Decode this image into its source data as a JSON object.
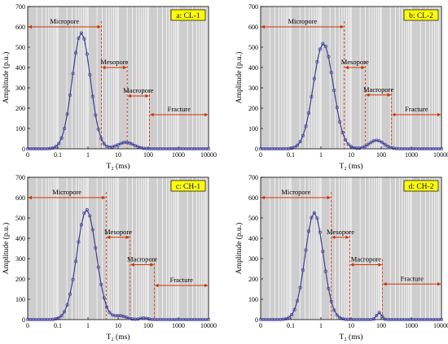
{
  "colors": {
    "plot_bg": "#cdcdcd",
    "grid": "#ffffff",
    "curve": "#3f3f9a",
    "region_marker": "#cc3300",
    "tag_bg": "#ffff00"
  },
  "chart_data": [
    {
      "type": "line",
      "panel": "a: CL-1",
      "xlabel": "T₂ (ms)",
      "ylabel": "Amplitude (p.u.)",
      "xscale": "log",
      "xlim": [
        0.01,
        10000
      ],
      "ylim": [
        0,
        700
      ],
      "xticks": [
        "0",
        "0.1",
        "1",
        "10",
        "100",
        "1000",
        "10000"
      ],
      "yticks": [
        "0",
        "100",
        "200",
        "300",
        "400",
        "500",
        "600",
        "700"
      ],
      "peaks": [
        {
          "center_ms": 0.6,
          "width_decades": 0.3,
          "amplitude": 570
        },
        {
          "center_ms": 18,
          "width_decades": 0.26,
          "amplitude": 32
        }
      ],
      "regions": [
        {
          "label": "Micropore",
          "from_ms": 0.01,
          "to_ms": 2.8,
          "y": 600
        },
        {
          "label": "Mesopore",
          "from_ms": 2.8,
          "to_ms": 20,
          "y": 400
        },
        {
          "label": "Macropore",
          "from_ms": 20,
          "to_ms": 110,
          "y": 260
        },
        {
          "label": "Fracture",
          "from_ms": 110,
          "to_ms": 10000,
          "y": 168
        }
      ]
    },
    {
      "type": "line",
      "panel": "b: CL-2",
      "xlabel": "T₂ (ms)",
      "ylabel": "Amplitude (p.u.)",
      "xscale": "log",
      "xlim": [
        0.01,
        10000
      ],
      "ylim": [
        0,
        700
      ],
      "xticks": [
        "0",
        "0.1",
        "1",
        "10",
        "100",
        "1000",
        "10000"
      ],
      "yticks": [
        "0",
        "100",
        "200",
        "300",
        "400",
        "500",
        "600",
        "700"
      ],
      "peaks": [
        {
          "center_ms": 1.2,
          "width_decades": 0.33,
          "amplitude": 518
        },
        {
          "center_ms": 70,
          "width_decades": 0.24,
          "amplitude": 42
        }
      ],
      "regions": [
        {
          "label": "Micropore",
          "from_ms": 0.01,
          "to_ms": 6,
          "y": 600
        },
        {
          "label": "Mesopore",
          "from_ms": 6,
          "to_ms": 30,
          "y": 400
        },
        {
          "label": "Macropore",
          "from_ms": 30,
          "to_ms": 220,
          "y": 265
        },
        {
          "label": "Fracture",
          "from_ms": 220,
          "to_ms": 10000,
          "y": 168
        }
      ]
    },
    {
      "type": "line",
      "panel": "c: CH-1",
      "xlabel": "T₂ (ms)",
      "ylabel": "Amplitude (p.u.)",
      "xscale": "log",
      "xlim": [
        0.01,
        10000
      ],
      "ylim": [
        0,
        700
      ],
      "xticks": [
        "0",
        "0.1",
        "1",
        "10",
        "100",
        "1000",
        "10000"
      ],
      "yticks": [
        "0",
        "100",
        "200",
        "300",
        "400",
        "500",
        "600",
        "700"
      ],
      "peaks": [
        {
          "center_ms": 0.9,
          "width_decades": 0.32,
          "amplitude": 540
        },
        {
          "center_ms": 12,
          "width_decades": 0.2,
          "amplitude": 18
        },
        {
          "center_ms": 70,
          "width_decades": 0.12,
          "amplitude": 8
        }
      ],
      "regions": [
        {
          "label": "Micropore",
          "from_ms": 0.01,
          "to_ms": 4,
          "y": 600
        },
        {
          "label": "Mesopore",
          "from_ms": 4,
          "to_ms": 25,
          "y": 405
        },
        {
          "label": "Macropore",
          "from_ms": 25,
          "to_ms": 160,
          "y": 270
        },
        {
          "label": "Fracture",
          "from_ms": 160,
          "to_ms": 10000,
          "y": 168
        }
      ]
    },
    {
      "type": "line",
      "panel": "d: CH-2",
      "xlabel": "T₂ (ms)",
      "ylabel": "Amplitude (p.u.)",
      "xscale": "log",
      "xlim": [
        0.01,
        10000
      ],
      "ylim": [
        0,
        700
      ],
      "xticks": [
        "0",
        "0.1",
        "1",
        "10",
        "100",
        "1000",
        "10000"
      ],
      "yticks": [
        "0",
        "100",
        "200",
        "300",
        "400",
        "500",
        "600",
        "700"
      ],
      "peaks": [
        {
          "center_ms": 0.6,
          "width_decades": 0.3,
          "amplitude": 525
        },
        {
          "center_ms": 85,
          "width_decades": 0.08,
          "amplitude": 35
        }
      ],
      "regions": [
        {
          "label": "Micropore",
          "from_ms": 0.01,
          "to_ms": 2.2,
          "y": 600
        },
        {
          "label": "Mesopore",
          "from_ms": 2.2,
          "to_ms": 9,
          "y": 405
        },
        {
          "label": "Macropore",
          "from_ms": 9,
          "to_ms": 110,
          "y": 270
        },
        {
          "label": "Fracture",
          "from_ms": 110,
          "to_ms": 10000,
          "y": 175
        }
      ]
    }
  ]
}
